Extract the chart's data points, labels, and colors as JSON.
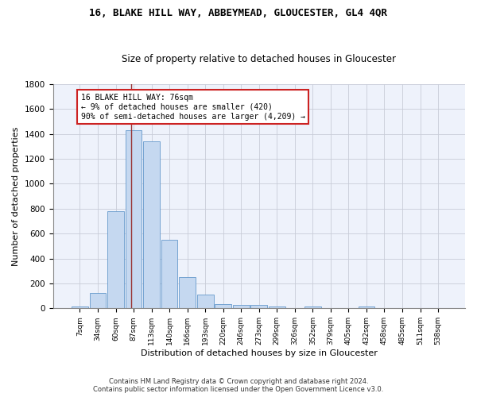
{
  "title": "16, BLAKE HILL WAY, ABBEYMEAD, GLOUCESTER, GL4 4QR",
  "subtitle": "Size of property relative to detached houses in Gloucester",
  "xlabel": "Distribution of detached houses by size in Gloucester",
  "ylabel": "Number of detached properties",
  "bar_color": "#c5d8f0",
  "bar_edge_color": "#6699cc",
  "background_color": "#eef2fb",
  "grid_color": "#c8ccd8",
  "categories": [
    "7sqm",
    "34sqm",
    "60sqm",
    "87sqm",
    "113sqm",
    "140sqm",
    "166sqm",
    "193sqm",
    "220sqm",
    "246sqm",
    "273sqm",
    "299sqm",
    "326sqm",
    "352sqm",
    "379sqm",
    "405sqm",
    "432sqm",
    "458sqm",
    "485sqm",
    "511sqm",
    "538sqm"
  ],
  "values": [
    15,
    125,
    780,
    1430,
    1340,
    550,
    248,
    110,
    35,
    30,
    28,
    18,
    0,
    18,
    0,
    0,
    18,
    0,
    0,
    0,
    0
  ],
  "ylim": [
    0,
    1800
  ],
  "yticks": [
    0,
    200,
    400,
    600,
    800,
    1000,
    1200,
    1400,
    1600,
    1800
  ],
  "vline_color": "#993333",
  "annotation_line1": "16 BLAKE HILL WAY: 76sqm",
  "annotation_line2": "← 9% of detached houses are smaller (420)",
  "annotation_line3": "90% of semi-detached houses are larger (4,209) →",
  "ann_box_color": "#cc2222",
  "footer_line1": "Contains HM Land Registry data © Crown copyright and database right 2024.",
  "footer_line2": "Contains public sector information licensed under the Open Government Licence v3.0."
}
